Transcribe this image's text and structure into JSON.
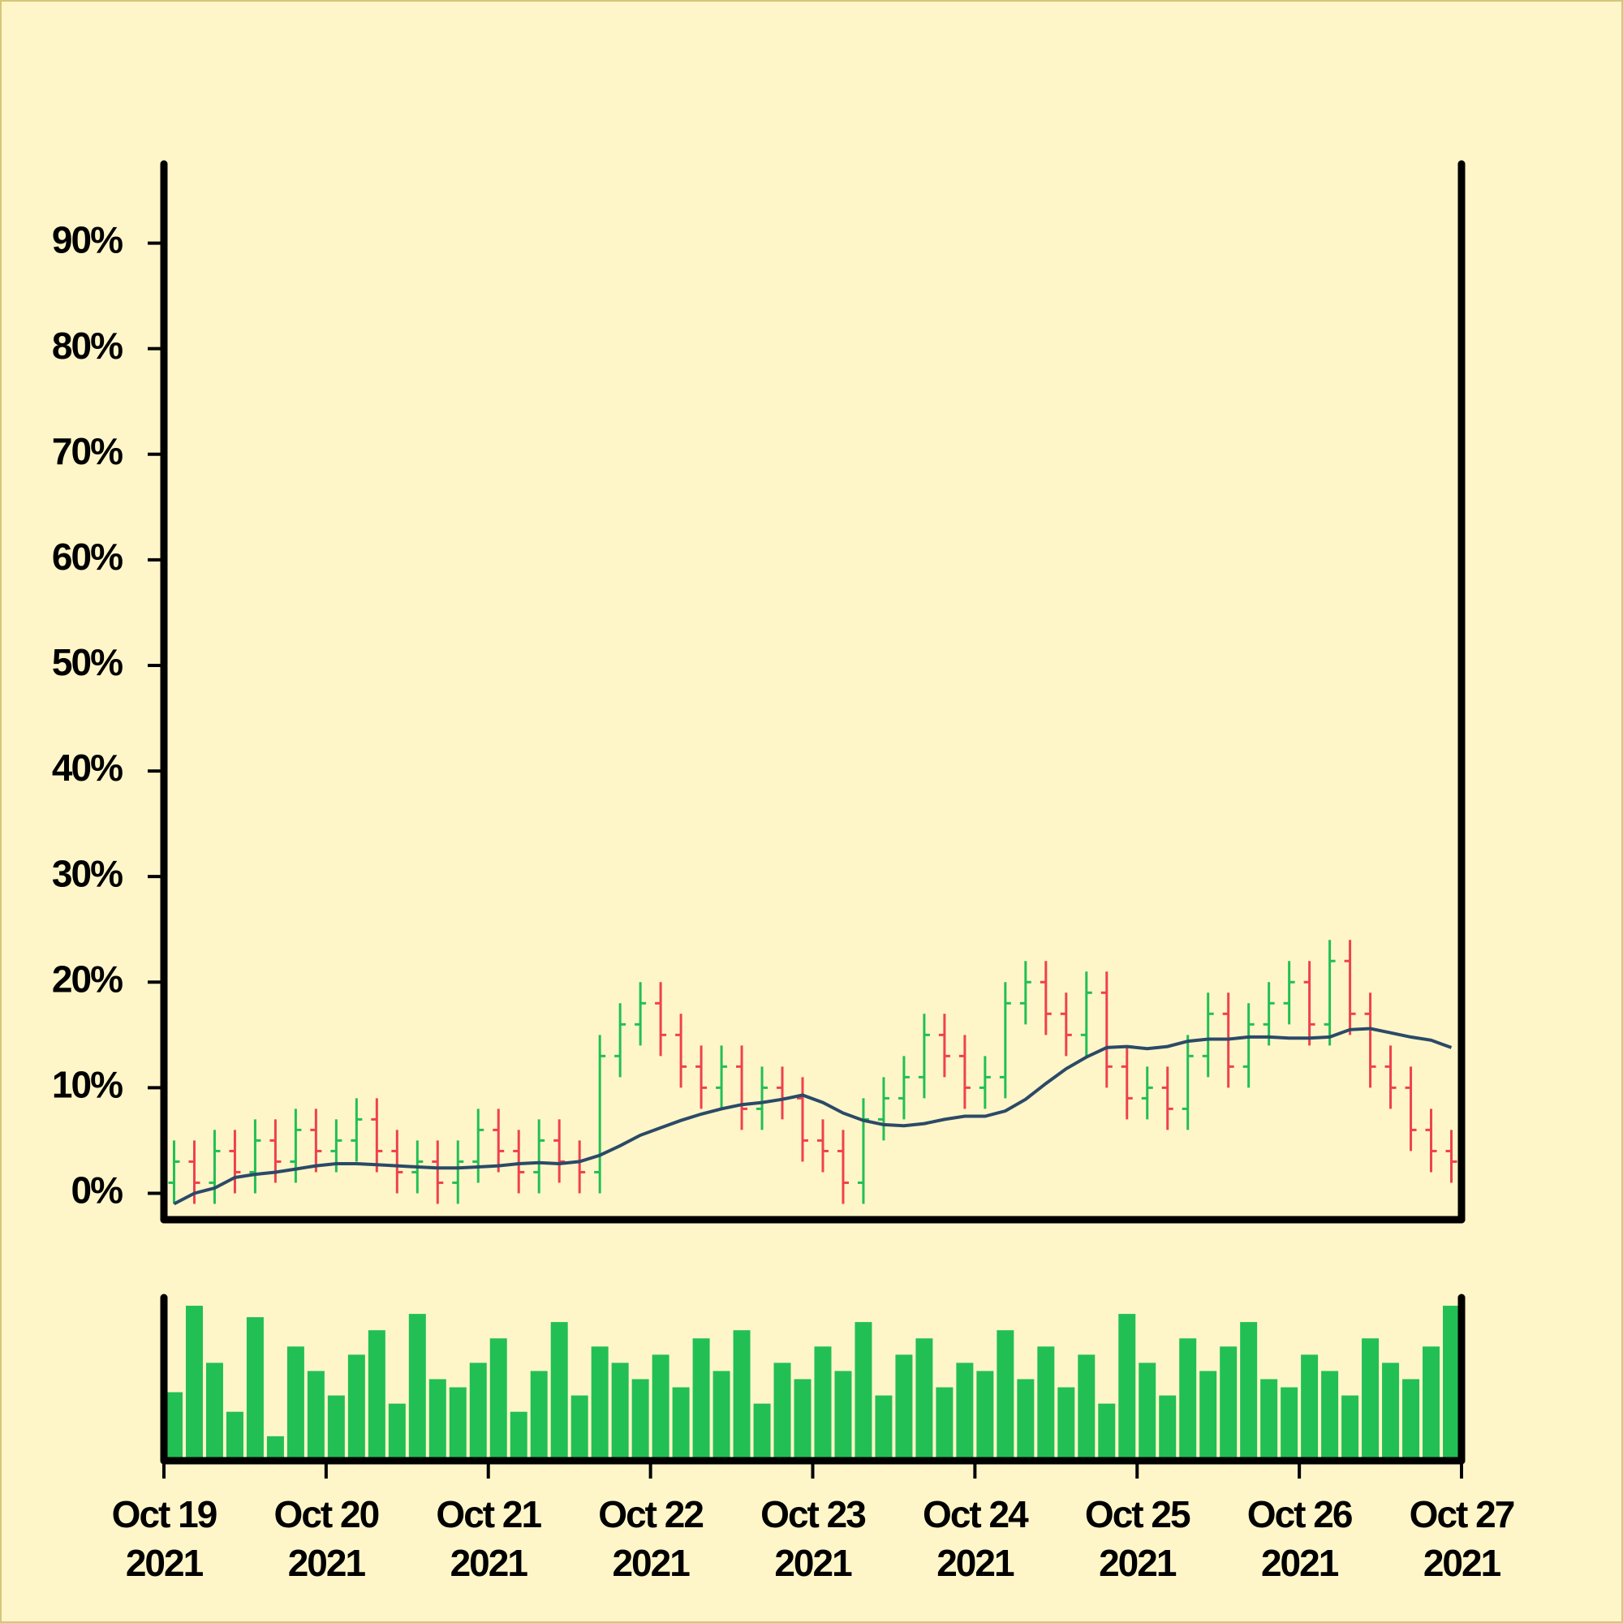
{
  "chart_data": {
    "type": "ohlc",
    "x": [
      0,
      0.125,
      0.25,
      0.375,
      0.5,
      0.625,
      0.75,
      0.875,
      1,
      1.125,
      1.25,
      1.375,
      1.5,
      1.625,
      1.75,
      1.875,
      2,
      2.125,
      2.25,
      2.375,
      2.5,
      2.625,
      2.75,
      2.875,
      3,
      3.125,
      3.25,
      3.375,
      3.5,
      3.625,
      3.75,
      3.875,
      4,
      4.125,
      4.25,
      4.375,
      4.5,
      4.625,
      4.75,
      4.875,
      5,
      5.125,
      5.25,
      5.375,
      5.5,
      5.625,
      5.75,
      5.875,
      6,
      6.125,
      6.25,
      6.375,
      6.5,
      6.625,
      6.75,
      6.875,
      7,
      7.125,
      7.25,
      7.375,
      7.5,
      7.625,
      7.75,
      7.875
    ],
    "open": [
      1,
      3,
      1,
      4,
      2,
      5,
      3,
      6,
      4,
      5,
      7,
      4,
      2,
      3,
      1,
      3,
      6,
      4,
      2,
      5,
      3,
      2,
      13,
      16,
      18,
      15,
      12,
      10,
      12,
      8,
      10,
      9,
      5,
      4,
      1,
      7,
      9,
      11,
      15,
      13,
      10,
      11,
      18,
      20,
      17,
      15,
      19,
      12,
      9,
      10,
      8,
      13,
      17,
      12,
      16,
      18,
      20,
      16,
      22,
      17,
      12,
      10,
      6,
      4
    ],
    "high": [
      5,
      5,
      6,
      6,
      7,
      7,
      8,
      8,
      7,
      9,
      9,
      6,
      5,
      5,
      5,
      8,
      8,
      6,
      7,
      7,
      5,
      15,
      18,
      20,
      20,
      17,
      14,
      14,
      14,
      12,
      12,
      11,
      7,
      6,
      9,
      11,
      13,
      17,
      17,
      15,
      13,
      20,
      22,
      22,
      19,
      21,
      21,
      14,
      12,
      12,
      15,
      19,
      19,
      18,
      20,
      22,
      22,
      24,
      24,
      19,
      14,
      12,
      8,
      6
    ],
    "low": [
      -1,
      -1,
      -1,
      0,
      0,
      1,
      1,
      2,
      2,
      3,
      2,
      0,
      0,
      -1,
      -1,
      1,
      2,
      0,
      0,
      1,
      0,
      0,
      11,
      14,
      13,
      10,
      8,
      8,
      6,
      6,
      7,
      3,
      2,
      -1,
      -1,
      5,
      7,
      9,
      11,
      8,
      8,
      9,
      16,
      15,
      13,
      13,
      10,
      7,
      7,
      6,
      6,
      11,
      10,
      10,
      14,
      16,
      14,
      14,
      15,
      10,
      8,
      4,
      2,
      1
    ],
    "close": [
      3,
      1,
      4,
      2,
      5,
      3,
      6,
      4,
      5,
      7,
      4,
      2,
      3,
      1,
      3,
      6,
      4,
      2,
      5,
      3,
      2,
      13,
      16,
      18,
      15,
      12,
      10,
      12,
      8,
      10,
      9,
      5,
      4,
      1,
      7,
      9,
      11,
      15,
      13,
      10,
      11,
      18,
      20,
      17,
      15,
      19,
      12,
      9,
      10,
      8,
      13,
      17,
      12,
      16,
      18,
      20,
      16,
      22,
      17,
      12,
      10,
      6,
      4,
      3
    ],
    "up_color": "#22bf55",
    "down_color": "#ef4150",
    "ma": {
      "color": "#2b4a68",
      "values": [
        -1,
        0,
        0.5,
        1.5,
        1.8,
        2,
        2.3,
        2.6,
        2.8,
        2.8,
        2.7,
        2.6,
        2.5,
        2.4,
        2.4,
        2.5,
        2.6,
        2.8,
        2.9,
        2.8,
        3,
        3.6,
        4.5,
        5.5,
        6.2,
        6.9,
        7.5,
        8,
        8.4,
        8.6,
        8.9,
        9.3,
        8.6,
        7.6,
        6.9,
        6.5,
        6.4,
        6.6,
        7,
        7.3,
        7.3,
        7.8,
        8.9,
        10.4,
        11.8,
        12.9,
        13.8,
        13.9,
        13.7,
        13.9,
        14.4,
        14.6,
        14.6,
        14.8,
        14.8,
        14.7,
        14.7,
        14.8,
        15.5,
        15.6,
        15.2,
        14.8,
        14.5,
        13.8
      ]
    },
    "volume": {
      "color": "#22bf55",
      "ylim": [
        0,
        100
      ],
      "values": [
        42,
        95,
        60,
        30,
        88,
        15,
        70,
        55,
        40,
        65,
        80,
        35,
        90,
        50,
        45,
        60,
        75,
        30,
        55,
        85,
        40,
        70,
        60,
        50,
        65,
        45,
        75,
        55,
        80,
        35,
        60,
        50,
        70,
        55,
        85,
        40,
        65,
        75,
        45,
        60,
        55,
        80,
        50,
        70,
        45,
        65,
        35,
        90,
        60,
        40,
        75,
        55,
        70,
        85,
        50,
        45,
        65,
        55,
        40,
        75,
        60,
        50,
        70,
        95
      ]
    },
    "xlim": [
      0,
      8
    ],
    "xticks": [
      {
        "value": 0,
        "label": "Oct 19\n2021"
      },
      {
        "value": 1,
        "label": "Oct 20\n2021"
      },
      {
        "value": 2,
        "label": "Oct 21\n2021"
      },
      {
        "value": 3,
        "label": "Oct 22\n2021"
      },
      {
        "value": 4,
        "label": "Oct 23\n2021"
      },
      {
        "value": 5,
        "label": "Oct 24\n2021"
      },
      {
        "value": 6,
        "label": "Oct 25\n2021"
      },
      {
        "value": 7,
        "label": "Oct 26\n2021"
      },
      {
        "value": 8,
        "label": "Oct 27\n2021"
      }
    ],
    "ylim": [
      -2.5,
      97.5
    ],
    "yticks": [
      {
        "value": 0,
        "label": "0%"
      },
      {
        "value": 10,
        "label": "10%"
      },
      {
        "value": 20,
        "label": "20%"
      },
      {
        "value": 30,
        "label": "30%"
      },
      {
        "value": 40,
        "label": "40%"
      },
      {
        "value": 50,
        "label": "50%"
      },
      {
        "value": 60,
        "label": "60%"
      },
      {
        "value": 70,
        "label": "70%"
      },
      {
        "value": 80,
        "label": "80%"
      },
      {
        "value": 90,
        "label": "90%"
      }
    ]
  }
}
